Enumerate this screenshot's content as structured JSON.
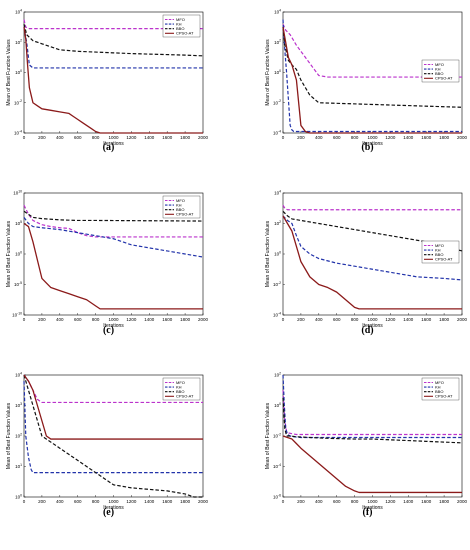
{
  "figure": {
    "xlabel": "Iterations",
    "ylabel": "Mean of Best Function Values"
  },
  "series_meta": [
    {
      "name": "MFO",
      "color": "#bb33cc",
      "dash": "dash"
    },
    {
      "name": "KH",
      "color": "#2233aa",
      "dash": "dash"
    },
    {
      "name": "BBO",
      "color": "#111111",
      "dash": "dash"
    },
    {
      "name": "CPSO-AT",
      "color": "#8b1a1a",
      "dash": "solid"
    }
  ],
  "chart_data": [
    {
      "type": "line",
      "caption": "(a)",
      "xlabel": "Iterations",
      "ylabel": "Mean of Best Function Values",
      "xlim": [
        0,
        2000
      ],
      "ylog": true,
      "ylim_exp": [
        -4,
        4
      ],
      "xticks": [
        0,
        200,
        400,
        600,
        800,
        1000,
        1200,
        1400,
        1600,
        1800,
        2000
      ],
      "yticks_exp": [
        -4,
        -2,
        0,
        2,
        4
      ],
      "legend": "top-right",
      "series": [
        {
          "name": "MFO",
          "x": [
            0,
            20,
            60,
            100,
            2000
          ],
          "y_exp": [
            3.5,
            3.0,
            2.9,
            2.9,
            2.9
          ]
        },
        {
          "name": "KH",
          "x": [
            0,
            30,
            60,
            100,
            150,
            2000
          ],
          "y_exp": [
            3.0,
            2.0,
            0.5,
            0.3,
            0.3,
            0.3
          ]
        },
        {
          "name": "BBO",
          "x": [
            0,
            30,
            100,
            200,
            300,
            400,
            600,
            800,
            1000,
            1200,
            1500,
            1800,
            2000
          ],
          "y_exp": [
            3.2,
            2.5,
            2.1,
            1.9,
            1.7,
            1.5,
            1.4,
            1.35,
            1.3,
            1.25,
            1.2,
            1.15,
            1.1
          ]
        },
        {
          "name": "CPSO-AT",
          "x": [
            0,
            20,
            40,
            60,
            80,
            100,
            150,
            200,
            300,
            400,
            500,
            550,
            600,
            650,
            700,
            750,
            800,
            850,
            900,
            2000
          ],
          "y_exp": [
            3.0,
            2.2,
            0.5,
            -1.0,
            -1.5,
            -2.0,
            -2.2,
            -2.4,
            -2.5,
            -2.6,
            -2.7,
            -2.9,
            -3.1,
            -3.3,
            -3.5,
            -3.7,
            -3.9,
            -4.0,
            -4.0,
            -4.0
          ]
        }
      ]
    },
    {
      "type": "line",
      "caption": "(b)",
      "xlabel": "Iterations",
      "ylabel": "Mean of Best Function Values",
      "xlim": [
        0,
        2000
      ],
      "ylog": true,
      "ylim_exp": [
        -4,
        4
      ],
      "xticks": [
        0,
        200,
        400,
        600,
        800,
        1000,
        1200,
        1400,
        1600,
        1800,
        2000
      ],
      "yticks_exp": [
        -4,
        -2,
        0,
        2,
        4
      ],
      "legend": "right",
      "series": [
        {
          "name": "MFO",
          "x": [
            0,
            30,
            80,
            150,
            250,
            350,
            400,
            500,
            2000
          ],
          "y_exp": [
            3.2,
            2.8,
            2.5,
            1.8,
            1.0,
            0.2,
            -0.2,
            -0.3,
            -0.3
          ]
        },
        {
          "name": "KH",
          "x": [
            0,
            20,
            40,
            80,
            100,
            120,
            2000
          ],
          "y_exp": [
            3.5,
            1.5,
            0.0,
            -3.5,
            -3.8,
            -3.9,
            -3.9
          ]
        },
        {
          "name": "BBO",
          "x": [
            0,
            20,
            60,
            100,
            150,
            200,
            300,
            400,
            2000
          ],
          "y_exp": [
            3.0,
            1.8,
            0.8,
            0.5,
            0.2,
            -0.5,
            -1.5,
            -2.0,
            -2.3
          ]
        },
        {
          "name": "CPSO-AT",
          "x": [
            0,
            30,
            60,
            100,
            150,
            200,
            250,
            300,
            2000
          ],
          "y_exp": [
            3.0,
            2.0,
            1.0,
            0.5,
            -0.5,
            -3.5,
            -3.9,
            -4.0,
            -4.0
          ]
        }
      ]
    },
    {
      "type": "line",
      "caption": "(c)",
      "xlabel": "Iterations",
      "ylabel": "Mean of Best Function Values",
      "xlim": [
        0,
        2000
      ],
      "ylog": true,
      "ylim_exp": [
        -10,
        10
      ],
      "xticks": [
        0,
        200,
        400,
        600,
        800,
        1000,
        1200,
        1400,
        1600,
        1800,
        2000
      ],
      "yticks_exp": [
        -10,
        -5,
        0,
        5,
        10
      ],
      "legend": "top-right",
      "series": [
        {
          "name": "MFO",
          "x": [
            0,
            50,
            100,
            200,
            300,
            400,
            500,
            600,
            700,
            800,
            2000
          ],
          "y_exp": [
            8.0,
            6.5,
            5.5,
            4.8,
            4.5,
            4.3,
            4.2,
            3.5,
            3.0,
            2.8,
            2.8
          ]
        },
        {
          "name": "KH",
          "x": [
            0,
            50,
            100,
            200,
            400,
            600,
            800,
            1000,
            1200,
            1400,
            1600,
            1800,
            2000
          ],
          "y_exp": [
            6.0,
            5.0,
            4.5,
            4.3,
            4.0,
            3.5,
            3.0,
            2.5,
            1.5,
            1.0,
            0.5,
            0.0,
            -0.5
          ]
        },
        {
          "name": "BBO",
          "x": [
            0,
            50,
            100,
            200,
            400,
            600,
            800,
            2000
          ],
          "y_exp": [
            7.0,
            6.5,
            6.0,
            5.8,
            5.6,
            5.5,
            5.5,
            5.4
          ]
        },
        {
          "name": "CPSO-AT",
          "x": [
            0,
            50,
            100,
            150,
            200,
            300,
            400,
            500,
            600,
            700,
            800,
            850,
            900,
            2000
          ],
          "y_exp": [
            5.0,
            4.5,
            2.0,
            -1.0,
            -4.0,
            -5.5,
            -6.0,
            -6.5,
            -7.0,
            -7.5,
            -8.5,
            -9.0,
            -9.0,
            -9.0
          ]
        }
      ]
    },
    {
      "type": "line",
      "caption": "(d)",
      "xlabel": "Iterations",
      "ylabel": "Mean of Best Function Values",
      "xlim": [
        0,
        2000
      ],
      "ylog": true,
      "ylim_exp": [
        -4,
        4
      ],
      "xticks": [
        0,
        200,
        400,
        600,
        800,
        1000,
        1200,
        1400,
        1600,
        1800,
        2000
      ],
      "yticks_exp": [
        -4,
        -2,
        0,
        2,
        4
      ],
      "legend": "right",
      "series": [
        {
          "name": "MFO",
          "x": [
            0,
            20,
            50,
            2000
          ],
          "y_exp": [
            3.2,
            3.0,
            2.9,
            2.9
          ]
        },
        {
          "name": "KH",
          "x": [
            0,
            50,
            100,
            150,
            200,
            300,
            400,
            600,
            800,
            1000,
            1200,
            1500,
            1800,
            2000
          ],
          "y_exp": [
            2.5,
            2.2,
            2.0,
            1.2,
            0.5,
            0.0,
            -0.3,
            -0.6,
            -0.8,
            -1.0,
            -1.2,
            -1.5,
            -1.6,
            -1.7
          ]
        },
        {
          "name": "BBO",
          "x": [
            0,
            50,
            100,
            200,
            400,
            600,
            800,
            1000,
            1200,
            1400,
            1600,
            1800,
            2000
          ],
          "y_exp": [
            2.8,
            2.5,
            2.3,
            2.2,
            2.0,
            1.8,
            1.6,
            1.4,
            1.2,
            1.0,
            0.8,
            0.5,
            0.2
          ]
        },
        {
          "name": "CPSO-AT",
          "x": [
            0,
            50,
            100,
            150,
            200,
            300,
            400,
            500,
            600,
            700,
            800,
            850,
            2000
          ],
          "y_exp": [
            2.5,
            2.0,
            1.5,
            0.5,
            -0.5,
            -1.5,
            -2.0,
            -2.2,
            -2.5,
            -3.0,
            -3.5,
            -3.6,
            -3.6
          ]
        }
      ]
    },
    {
      "type": "line",
      "caption": "(e)",
      "xlabel": "Iterations",
      "ylabel": "Mean of Best Function Values",
      "xlim": [
        0,
        2000
      ],
      "ylog": true,
      "ylim_exp": [
        0,
        4
      ],
      "xticks": [
        0,
        200,
        400,
        600,
        800,
        1000,
        1200,
        1400,
        1600,
        1800,
        2000
      ],
      "yticks_exp": [
        0,
        1,
        2,
        3,
        4
      ],
      "legend": "top-right",
      "series": [
        {
          "name": "MFO",
          "x": [
            0,
            50,
            100,
            150,
            200,
            2000
          ],
          "y_exp": [
            4.0,
            3.8,
            3.5,
            3.2,
            3.1,
            3.1
          ]
        },
        {
          "name": "KH",
          "x": [
            0,
            20,
            50,
            80,
            100,
            2000
          ],
          "y_exp": [
            3.8,
            2.0,
            1.3,
            0.9,
            0.8,
            0.8
          ]
        },
        {
          "name": "BBO",
          "x": [
            0,
            100,
            200,
            300,
            400,
            500,
            600,
            700,
            800,
            900,
            1000,
            1200,
            1400,
            1600,
            1800,
            1900,
            2000
          ],
          "y_exp": [
            4.0,
            3.0,
            2.0,
            1.8,
            1.6,
            1.4,
            1.2,
            1.0,
            0.8,
            0.6,
            0.4,
            0.3,
            0.25,
            0.2,
            0.1,
            0.0,
            0.0
          ]
        },
        {
          "name": "CPSO-AT",
          "x": [
            0,
            50,
            100,
            150,
            200,
            250,
            300,
            2000
          ],
          "y_exp": [
            4.0,
            3.8,
            3.5,
            3.0,
            2.5,
            2.0,
            1.9,
            1.9
          ]
        }
      ]
    },
    {
      "type": "line",
      "caption": "(f)",
      "xlabel": "Iterations",
      "ylabel": "Mean of Best Function Values",
      "xlim": [
        0,
        2000
      ],
      "ylog": true,
      "ylim_exp": [
        -6,
        2
      ],
      "xticks": [
        0,
        200,
        400,
        600,
        800,
        1000,
        1200,
        1400,
        1600,
        1800,
        2000
      ],
      "yticks_exp": [
        -6,
        -4,
        -2,
        0,
        2
      ],
      "legend": "top-right",
      "series": [
        {
          "name": "MFO",
          "x": [
            0,
            20,
            40,
            60,
            100,
            150,
            2000
          ],
          "y_exp": [
            1.0,
            -1.0,
            -1.7,
            -1.8,
            -1.85,
            -1.9,
            -1.9
          ]
        },
        {
          "name": "KH",
          "x": [
            0,
            15,
            30,
            50,
            80,
            120,
            200,
            2000
          ],
          "y_exp": [
            2.0,
            0.0,
            -1.5,
            -1.9,
            -2.0,
            -2.05,
            -2.1,
            -2.1
          ]
        },
        {
          "name": "BBO",
          "x": [
            0,
            20,
            40,
            80,
            150,
            300,
            500,
            800,
            1000,
            1200,
            1400,
            1600,
            1800,
            2000
          ],
          "y_exp": [
            0.5,
            -1.5,
            -2.0,
            -2.0,
            -2.05,
            -2.1,
            -2.15,
            -2.2,
            -2.2,
            -2.25,
            -2.3,
            -2.35,
            -2.4,
            -2.45
          ]
        },
        {
          "name": "CPSO-AT",
          "x": [
            0,
            50,
            100,
            150,
            200,
            300,
            400,
            500,
            600,
            700,
            800,
            850,
            900,
            2000
          ],
          "y_exp": [
            -2.0,
            -2.1,
            -2.2,
            -2.5,
            -2.8,
            -3.3,
            -3.8,
            -4.3,
            -4.8,
            -5.3,
            -5.6,
            -5.7,
            -5.7,
            -5.7
          ]
        }
      ]
    }
  ]
}
